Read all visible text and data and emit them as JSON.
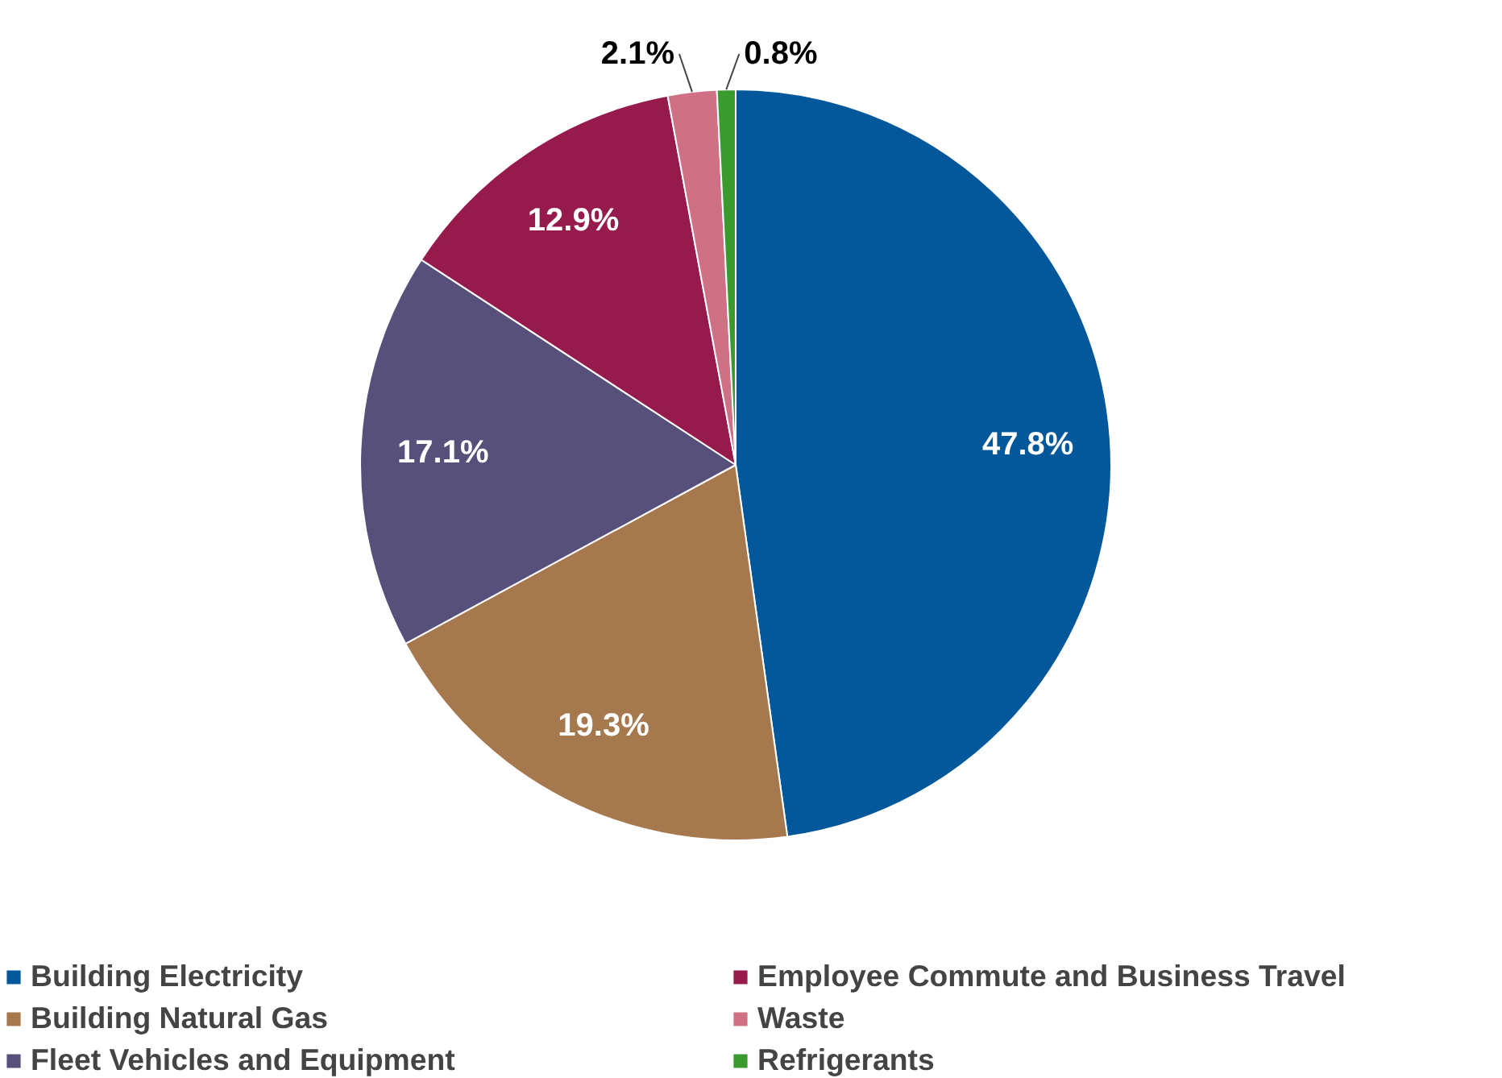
{
  "chart_data": {
    "type": "pie",
    "categories": [
      "Building Electricity",
      "Building Natural Gas",
      "Fleet Vehicles and Equipment",
      "Employee Commute and Business Travel",
      "Waste",
      "Refrigerants"
    ],
    "values": [
      47.8,
      19.3,
      17.1,
      12.9,
      2.1,
      0.8
    ],
    "colors": [
      "#02589a",
      "#a5784e",
      "#57507a",
      "#961a4c",
      "#cf7085",
      "#3a9a2e"
    ],
    "value_labels": [
      "47.8%",
      "19.3%",
      "17.1%",
      "12.9%",
      "2.1%",
      "0.8%"
    ],
    "legend": "bottom"
  }
}
